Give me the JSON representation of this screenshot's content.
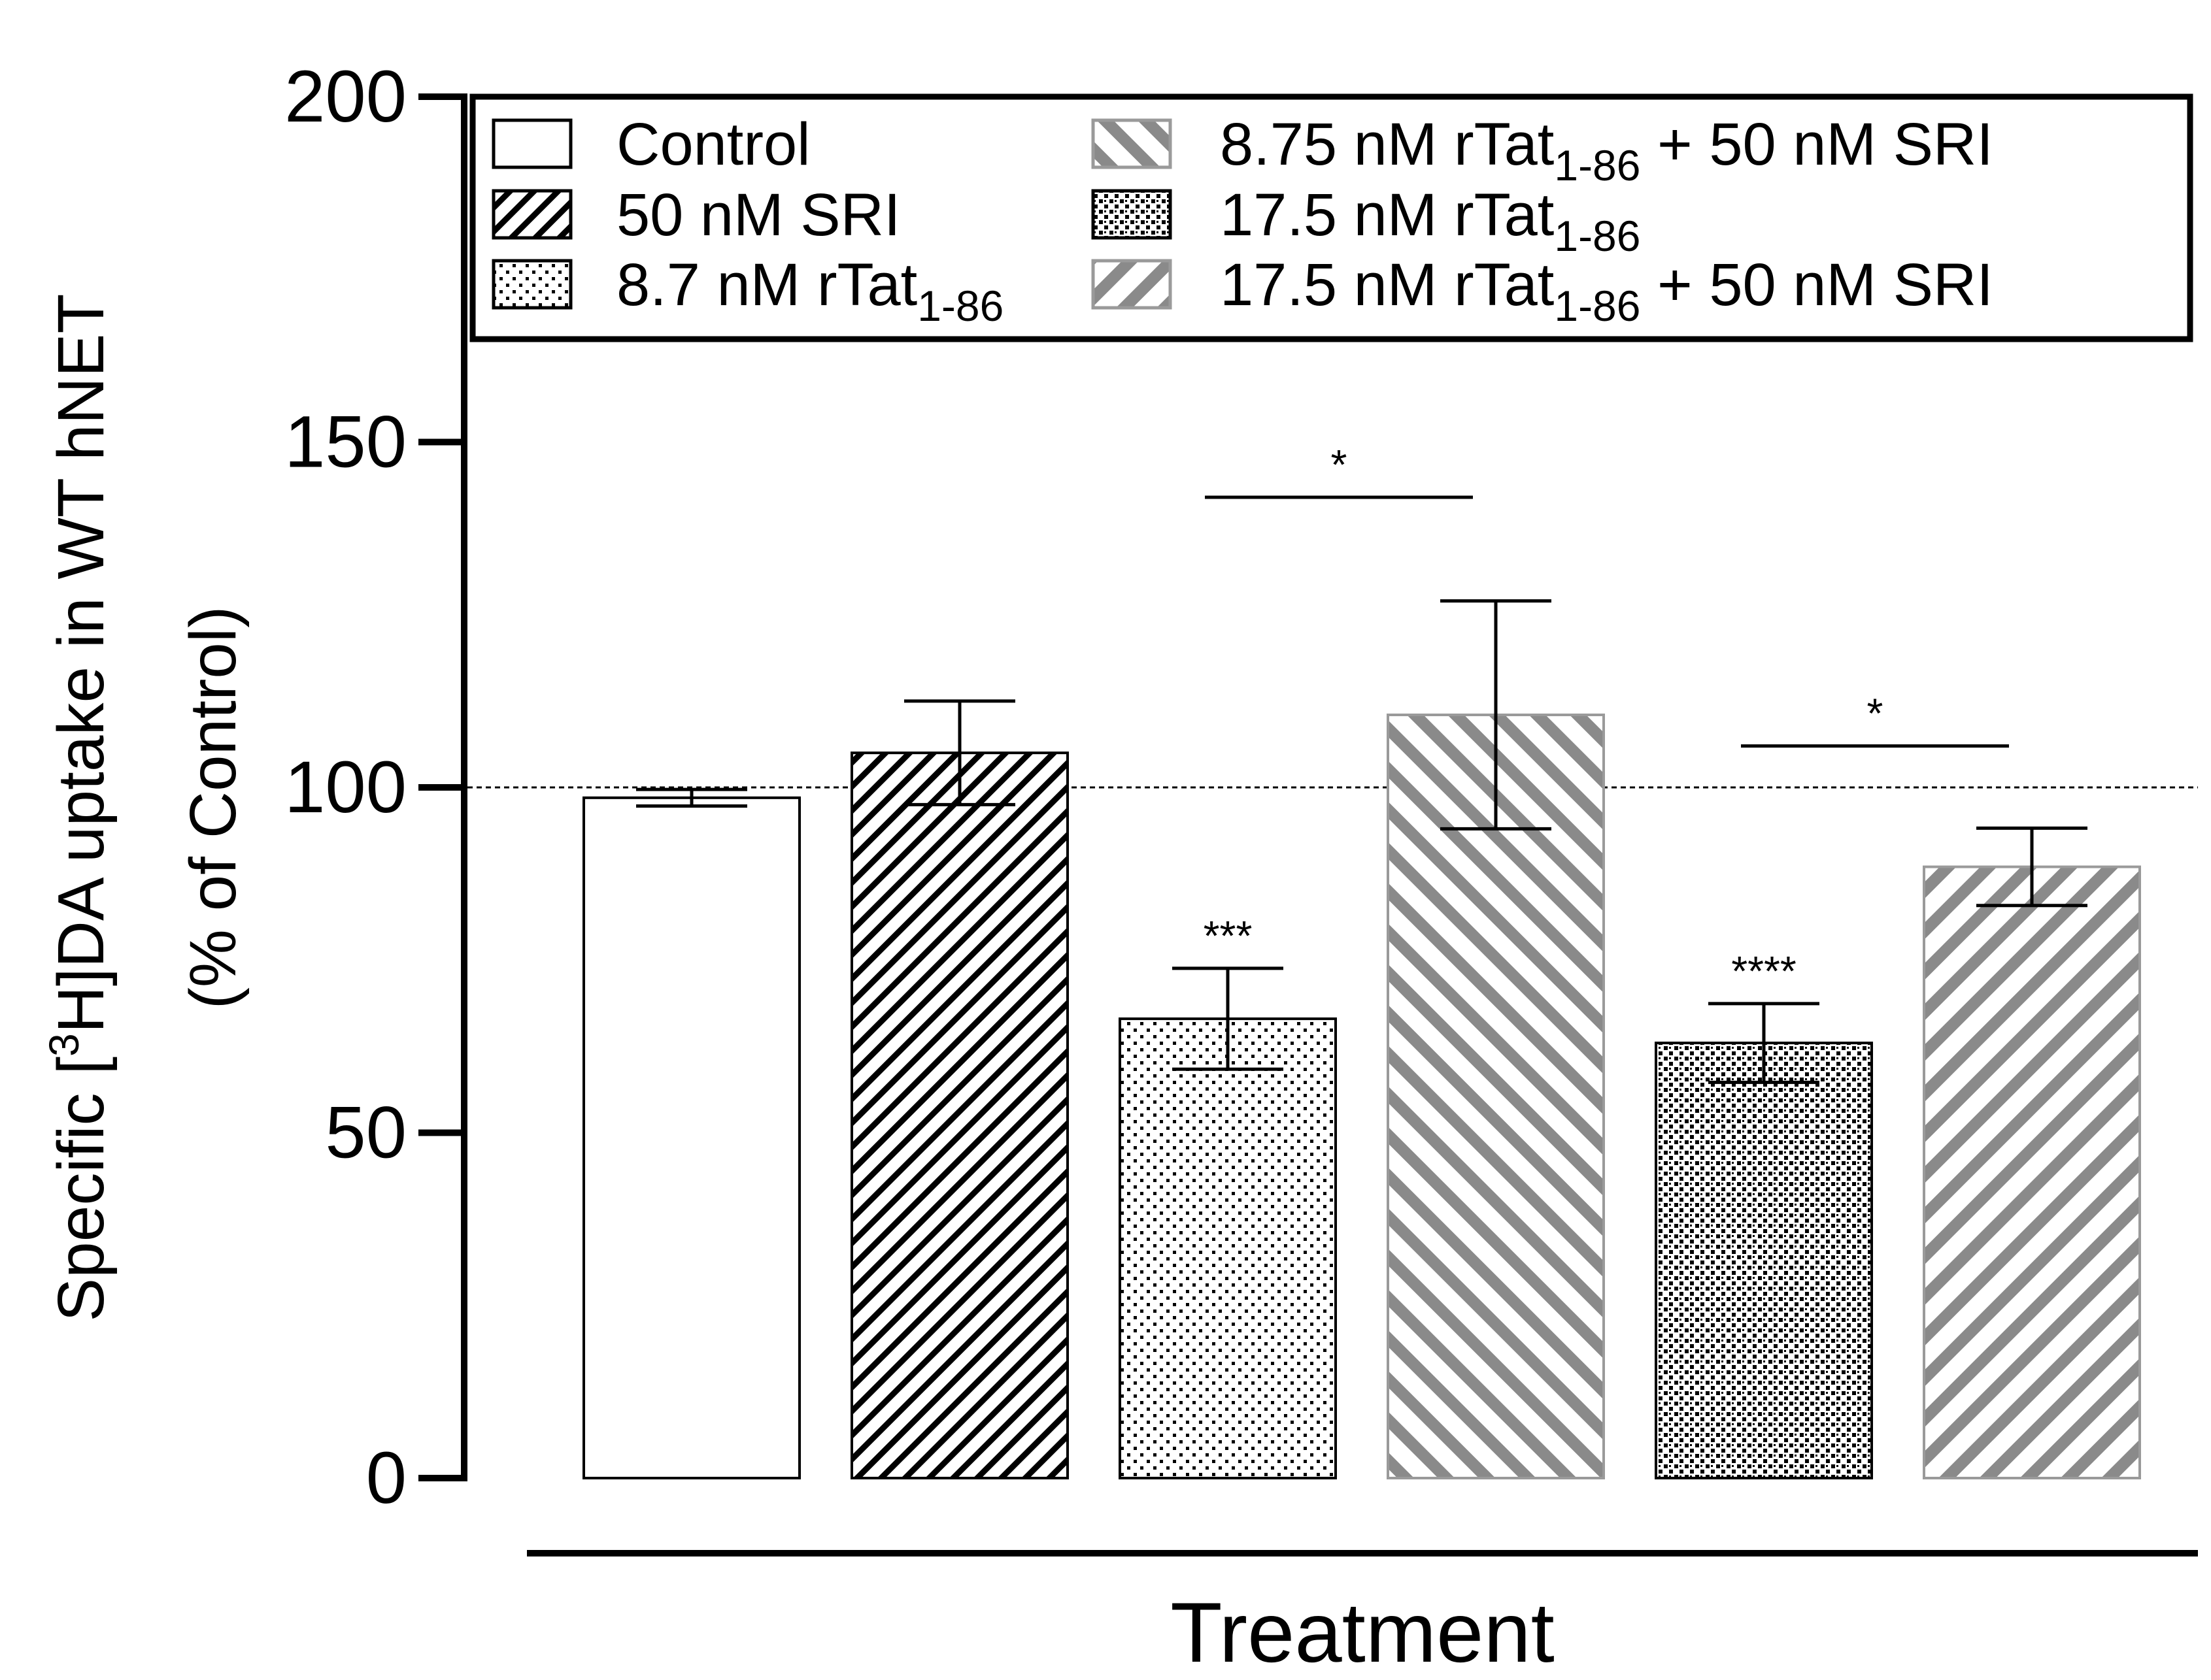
{
  "chart_data": {
    "type": "bar",
    "title": "",
    "xlabel": "Treatment",
    "ylabel": {
      "line1_prefix": "Specific [",
      "line1_sup": "3",
      "line1_suffix": "H]DA uptake in WT hNET",
      "line2": "(% of Control)"
    },
    "ylim": [
      0,
      200
    ],
    "yticks": [
      "0",
      "50",
      "100",
      "150",
      "200"
    ],
    "reference_line": 100,
    "categories": [
      "Control",
      "50 nM SRI",
      "8.7 nM rTat1-86",
      "8.75 nM rTat1-86 + 50 nM SRI",
      "17.5 nM rTat1-86",
      "17.5 nM rTat1-86 + 50 nM SRI"
    ],
    "series": [
      {
        "name": "Specific [3H]DA uptake (% of Control)",
        "values": [
          98.5,
          105,
          66.5,
          110.5,
          63,
          88.5
        ],
        "error": [
          1.2,
          7.5,
          7.3,
          16.5,
          5.7,
          5.6
        ],
        "labels": [
          "",
          "",
          "***",
          "",
          "****",
          ""
        ]
      }
    ],
    "significance_bars": [
      {
        "from": 2,
        "to": 3,
        "y": 142,
        "label": "*"
      },
      {
        "from": 4,
        "to": 5,
        "y": 106,
        "label": "*"
      }
    ],
    "legend": {
      "position": "top",
      "items": [
        {
          "pre": "Control",
          "sub": "",
          "post": "",
          "pattern": "white"
        },
        {
          "pre": "50 nM SRI",
          "sub": "",
          "post": "",
          "pattern": "hatch-black"
        },
        {
          "pre": "8.7 nM rTat",
          "sub": "1-86",
          "post": "",
          "pattern": "dots-sparse"
        },
        {
          "pre": "8.75 nM rTat",
          "sub": "1-86",
          "post": " + 50 nM SRI",
          "pattern": "hatch-gray-back"
        },
        {
          "pre": "17.5 nM rTat",
          "sub": "1-86",
          "post": "",
          "pattern": "dots-dense"
        },
        {
          "pre": "17.5 nM rTat",
          "sub": "1-86",
          "post": " + 50 nM SRI",
          "pattern": "hatch-gray"
        }
      ]
    },
    "colors": {
      "axis": "#000000",
      "gray_hatch": "#8a8a8a",
      "bar_outline_gray": "#9a9a9a"
    }
  }
}
